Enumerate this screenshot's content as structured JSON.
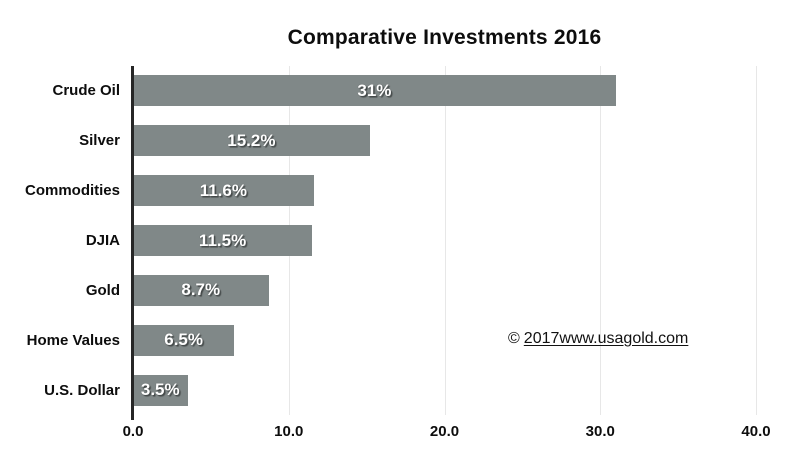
{
  "title": "Comparative Investments 2016",
  "copyright": {
    "symbol": "©",
    "text": "2017www.usagold.com"
  },
  "chart_data": {
    "type": "bar",
    "orientation": "horizontal",
    "title": "Comparative Investments 2016",
    "categories": [
      "Crude Oil",
      "Silver",
      "Commodities",
      "DJIA",
      "Gold",
      "Home Values",
      "U.S. Dollar"
    ],
    "values": [
      31,
      15.2,
      11.6,
      11.5,
      8.7,
      6.5,
      3.5
    ],
    "value_labels": [
      "31%",
      "15.2%",
      "11.6%",
      "11.5%",
      "8.7%",
      "6.5%",
      "3.5%"
    ],
    "xlabel": "",
    "ylabel": "",
    "xlim": [
      0,
      40
    ],
    "x_ticks": [
      "0.0",
      "10.0",
      "20.0",
      "30.0",
      "40.0"
    ],
    "grid": "vertical-only",
    "legend": "none",
    "bar_color": "#808888",
    "value_label_color": "#ffffff",
    "axis_line_color": "#262626",
    "gridline_color": "#e7e7e7"
  }
}
